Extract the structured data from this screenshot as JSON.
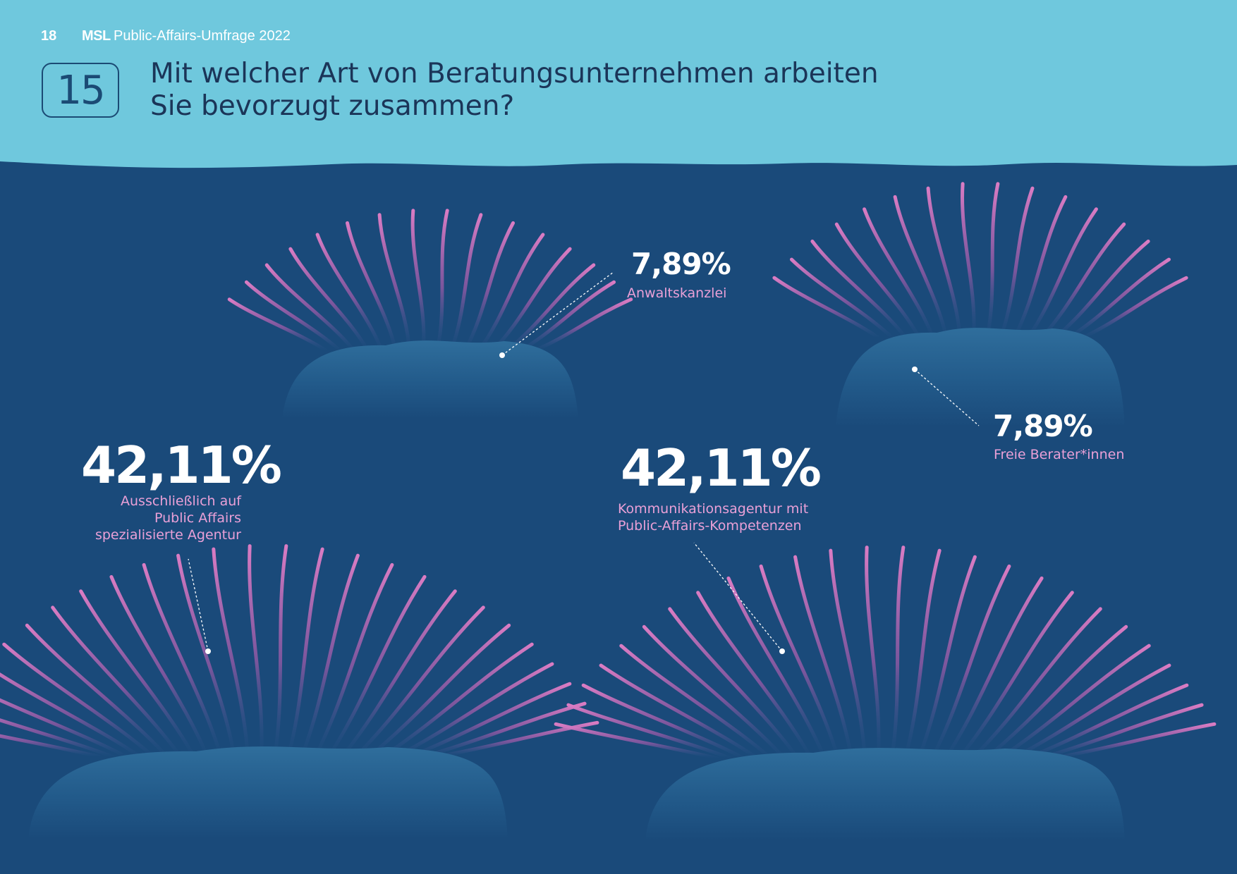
{
  "header": {
    "page_number": "18",
    "brand": "MSL",
    "report_title": "Public-Affairs-Umfrage 2022",
    "question_number": "15",
    "question_lines": [
      "Mit welcher Art von Beratungsunternehmen arbeiten",
      "Sie bevorzugt zusammen?"
    ]
  },
  "colors": {
    "header_bg": "#6fc8dd",
    "sea_bg": "#1a4a7a",
    "island": "#2f6f9c",
    "tentacle": "#d678bf",
    "value_text": "#ffffff",
    "label_text": "#e9a0d7"
  },
  "chart_data": {
    "type": "pie",
    "title": "Mit welcher Art von Beratungsunternehmen arbeiten Sie bevorzugt zusammen?",
    "unit": "%",
    "categories": [
      "Anwaltskanzlei",
      "Freie Berater*innen",
      "Ausschließlich auf Public Affairs spezialisierte Agentur",
      "Kommunikationsagentur mit Public-Affairs-Kompetenzen"
    ],
    "values": [
      7.89,
      7.89,
      42.11,
      42.11
    ],
    "items": [
      {
        "value": 7.89,
        "display": "7,89%",
        "label_lines": [
          "Anwaltskanzlei"
        ]
      },
      {
        "value": 7.89,
        "display": "7,89%",
        "label_lines": [
          "Freie Berater*innen"
        ]
      },
      {
        "value": 42.11,
        "display": "42,11%",
        "label_lines": [
          "Ausschließlich auf",
          "Public Affairs",
          "spezialisierte Agentur"
        ]
      },
      {
        "value": 42.11,
        "display": "42,11%",
        "label_lines": [
          "Kommunikationsagentur mit",
          "Public-Affairs-Kompetenzen"
        ]
      }
    ]
  }
}
